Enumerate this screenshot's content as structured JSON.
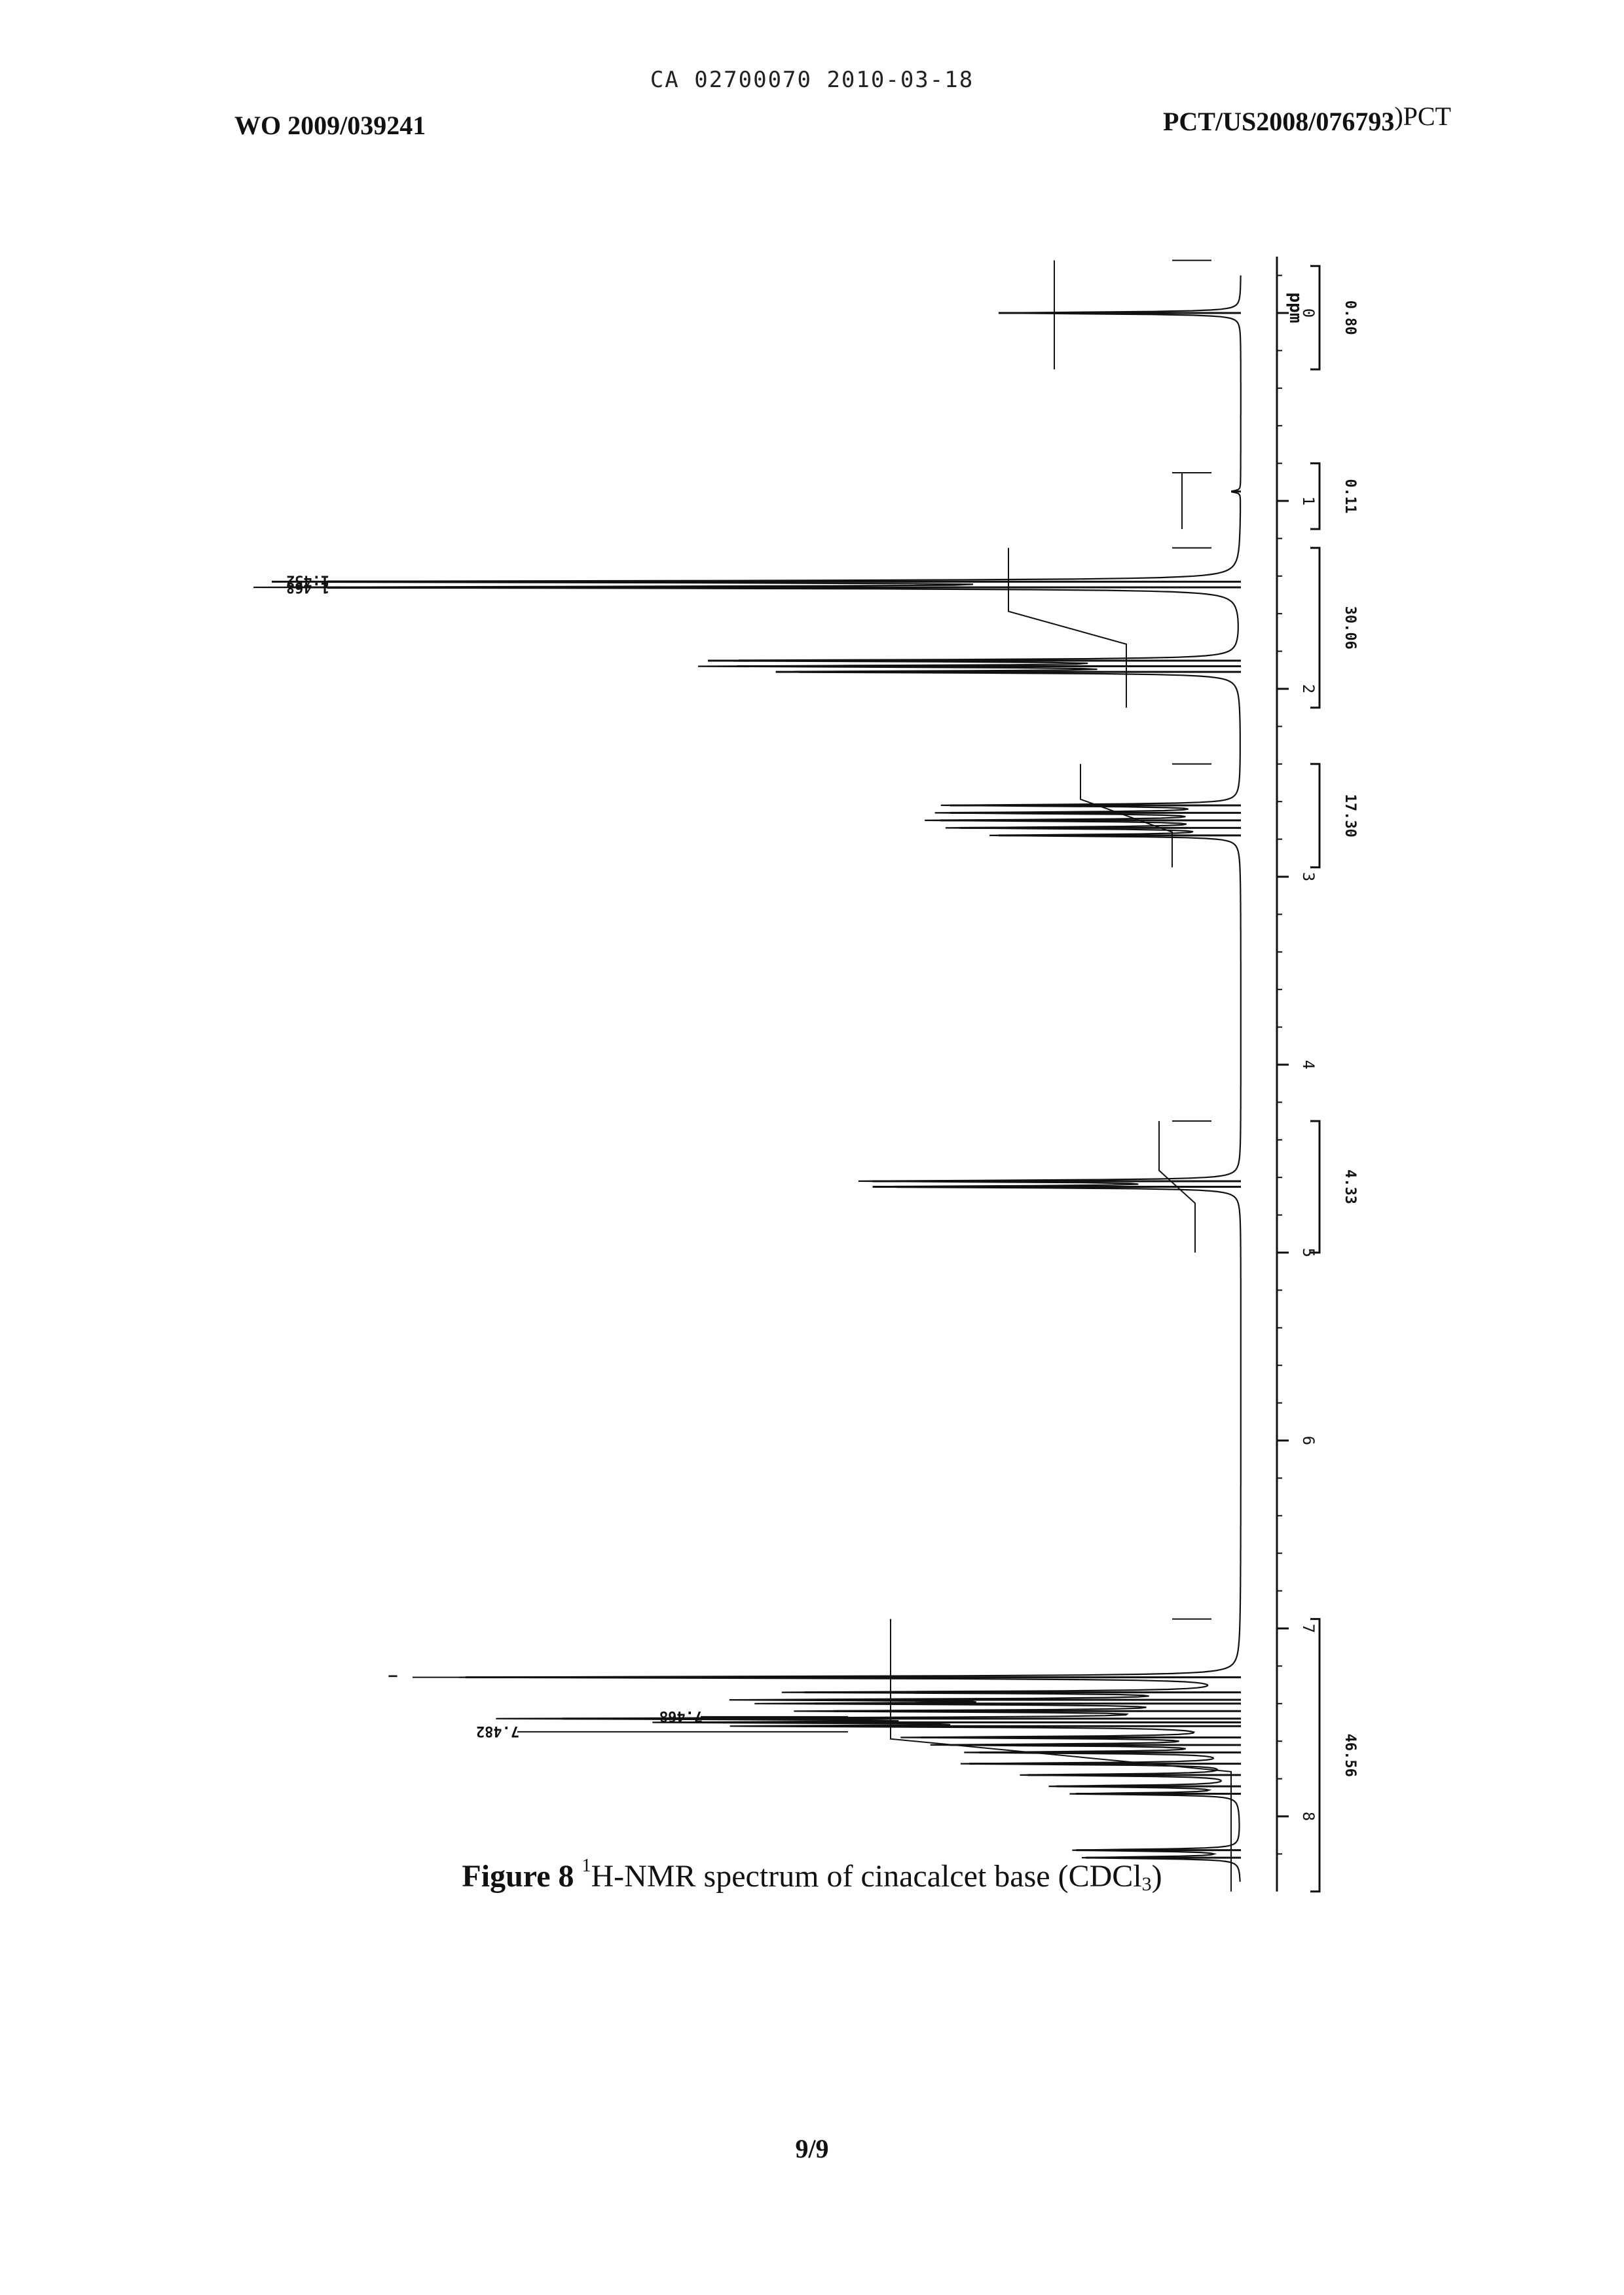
{
  "header": {
    "center": "CA 02700070 2010-03-18",
    "left": "WO 2009/039241",
    "right_main": "PCT/US2008/076793",
    "right_suffix": ")PCT"
  },
  "caption": {
    "figure_label": "Figure 8",
    "superscript": "1",
    "text_before_sub": "H-NMR spectrum of cinacalcet base (CDCl",
    "subscript": "3",
    "text_after_sub": ")"
  },
  "page_number": "9/9",
  "chart_data": {
    "type": "line",
    "title": "",
    "xlabel": "ppm",
    "ylabel": "",
    "x_reversed": true,
    "xlim": [
      -0.3,
      8.4
    ],
    "x_ticks": [
      0,
      1,
      2,
      3,
      4,
      5,
      6,
      7,
      8
    ],
    "x_tick_labels": [
      "0",
      "1",
      "2",
      "3",
      "4",
      "5",
      "6",
      "7",
      "8"
    ],
    "grid": false,
    "line_color": "#111111",
    "peaks": [
      {
        "ppm": 0.0,
        "height": 0.25
      },
      {
        "ppm": 0.95,
        "height": 0.01
      },
      {
        "ppm": 1.43,
        "height": 1.0
      },
      {
        "ppm": 1.46,
        "height": 0.98
      },
      {
        "ppm": 1.85,
        "height": 0.55
      },
      {
        "ppm": 1.88,
        "height": 0.52
      },
      {
        "ppm": 1.91,
        "height": 0.48
      },
      {
        "ppm": 2.62,
        "height": 0.3
      },
      {
        "ppm": 2.66,
        "height": 0.3
      },
      {
        "ppm": 2.7,
        "height": 0.31
      },
      {
        "ppm": 2.74,
        "height": 0.29
      },
      {
        "ppm": 2.78,
        "height": 0.25
      },
      {
        "ppm": 4.62,
        "height": 0.38
      },
      {
        "ppm": 4.65,
        "height": 0.38
      },
      {
        "ppm": 7.26,
        "height": 0.8
      },
      {
        "ppm": 7.34,
        "height": 0.45
      },
      {
        "ppm": 7.38,
        "height": 0.47
      },
      {
        "ppm": 7.4,
        "height": 0.44
      },
      {
        "ppm": 7.44,
        "height": 0.42
      },
      {
        "ppm": 7.48,
        "height": 0.7
      },
      {
        "ppm": 7.5,
        "height": 0.5
      },
      {
        "ppm": 7.52,
        "height": 0.46
      },
      {
        "ppm": 7.58,
        "height": 0.33
      },
      {
        "ppm": 7.62,
        "height": 0.3
      },
      {
        "ppm": 7.66,
        "height": 0.27
      },
      {
        "ppm": 7.72,
        "height": 0.28
      },
      {
        "ppm": 7.78,
        "height": 0.22
      },
      {
        "ppm": 7.84,
        "height": 0.19
      },
      {
        "ppm": 7.88,
        "height": 0.17
      },
      {
        "ppm": 8.18,
        "height": 0.17
      },
      {
        "ppm": 8.22,
        "height": 0.16
      }
    ],
    "peak_labels": [
      {
        "ppm": 1.427,
        "text": "1.452"
      },
      {
        "ppm": 1.464,
        "text": "1.468"
      },
      {
        "ppm": 7.26,
        "text": "—"
      },
      {
        "ppm": 7.47,
        "text": "7.468"
      },
      {
        "ppm": 7.55,
        "text": "7.482"
      }
    ],
    "integrals": [
      {
        "from": -0.25,
        "to": 0.3,
        "label": "0.80"
      },
      {
        "from": 0.8,
        "to": 1.15,
        "label": "0.11"
      },
      {
        "from": 1.25,
        "to": 2.1,
        "label": "30.06"
      },
      {
        "from": 2.4,
        "to": 2.95,
        "label": "17.30"
      },
      {
        "from": 4.3,
        "to": 5.0,
        "label": "4.33"
      },
      {
        "from": 6.95,
        "to": 8.4,
        "label": "46.56"
      }
    ]
  }
}
